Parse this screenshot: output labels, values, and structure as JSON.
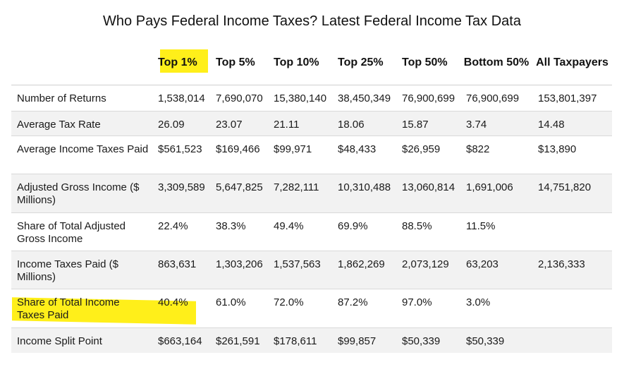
{
  "title": "Who Pays Federal Income Taxes? Latest Federal Income Tax Data",
  "colors": {
    "highlight": "#ffef1a",
    "row_alt": "#f2f2f2",
    "rule": "#d9d9d9"
  },
  "columns": [
    "Top 1%",
    "Top 5%",
    "Top 10%",
    "Top 25%",
    "Top 50%",
    "Bottom 50%",
    "All Taxpayers"
  ],
  "rows": [
    {
      "label": "Number of Returns",
      "values": [
        "1,538,014",
        "7,690,070",
        "15,380,140",
        "38,450,349",
        "76,900,699",
        "76,900,699",
        "153,801,397"
      ]
    },
    {
      "label": "Average Tax Rate",
      "values": [
        "26.09",
        "23.07",
        "21.11",
        "18.06",
        "15.87",
        "3.74",
        "14.48"
      ]
    },
    {
      "label": "Average Income Taxes Paid",
      "values": [
        "$561,523",
        "$169,466",
        "$99,971",
        "$48,433",
        "$26,959",
        "$822",
        "$13,890"
      ]
    },
    {
      "label": "Adjusted Gross Income ($ Millions)",
      "values": [
        "3,309,589",
        "5,647,825",
        "7,282,111",
        "10,310,488",
        "13,060,814",
        "1,691,006",
        "14,751,820"
      ]
    },
    {
      "label": "Share of Total Adjusted Gross Income",
      "values": [
        "22.4%",
        "38.3%",
        "49.4%",
        "69.9%",
        "88.5%",
        "11.5%",
        ""
      ]
    },
    {
      "label": "Income Taxes Paid ($ Millions)",
      "values": [
        "863,631",
        "1,303,206",
        "1,537,563",
        "1,862,269",
        "2,073,129",
        "63,203",
        "2,136,333"
      ]
    },
    {
      "label": "Share of Total Income Taxes Paid",
      "values": [
        "40.4%",
        "61.0%",
        "72.0%",
        "87.2%",
        "97.0%",
        "3.0%",
        ""
      ]
    },
    {
      "label": "Income Split Point",
      "values": [
        "$663,164",
        "$261,591",
        "$178,611",
        "$99,857",
        "$50,339",
        "$50,339",
        ""
      ]
    }
  ]
}
